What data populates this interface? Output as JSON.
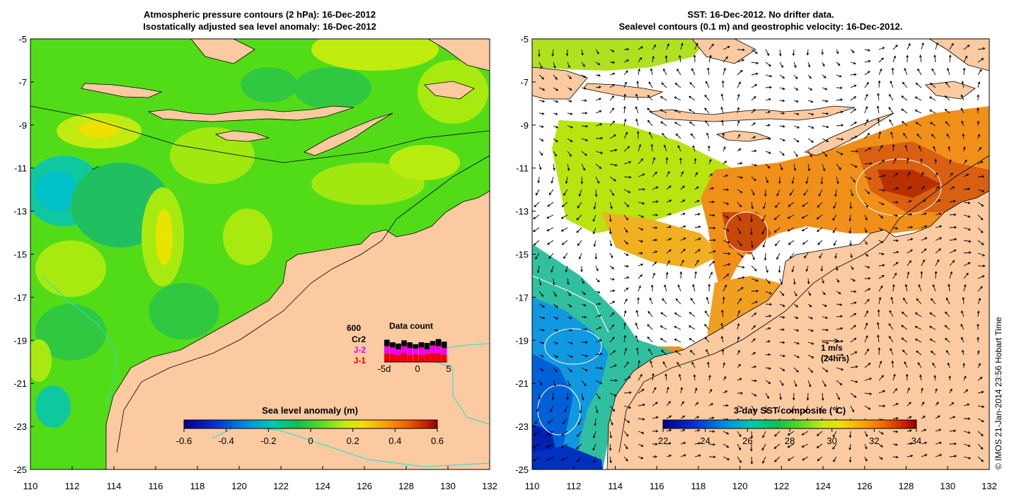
{
  "left_panel": {
    "title_line1": "Atmospheric pressure contours (2 hPa): 16-Dec-2012",
    "title_line2": "Isostatically adjusted sea level anomaly: 16-Dec-2012",
    "colorbar_title": "Sea level anomaly (m)",
    "colorbar_ticks": [
      "-0.6",
      "-0.4",
      "-0.2",
      "0",
      "0.2",
      "0.4",
      "0.6"
    ],
    "colors": {
      "ocean": "#52dc18",
      "land": "#fbcaa0",
      "coast_contour": "#1ce0e0"
    },
    "data_count": {
      "title": "Data count",
      "max_label": "600",
      "legend": [
        {
          "label": "Cr2",
          "color": "#000000"
        },
        {
          "label": "J-2",
          "color": "#f000f0"
        },
        {
          "label": "J-1",
          "color": "#f00000"
        }
      ],
      "x_ticks": [
        "-5d",
        "0",
        "5"
      ],
      "bars_total": [
        0.7,
        0.62,
        0.58,
        0.68,
        0.62,
        0.56,
        0.62,
        0.6,
        0.66,
        0.72,
        0.64
      ],
      "bars_j2": [
        0.5,
        0.46,
        0.4,
        0.5,
        0.44,
        0.42,
        0.46,
        0.4,
        0.52,
        0.5,
        0.44
      ],
      "bars_j1": [
        0.26,
        0.24,
        0.22,
        0.28,
        0.22,
        0.24,
        0.22,
        0.24,
        0.28,
        0.26,
        0.22
      ]
    }
  },
  "right_panel": {
    "title_line1": "SST: 16-Dec-2012. No drifter data.",
    "title_line2": "Sealevel contours (0.1 m) and geostrophic velocity: 16-Dec-2012.",
    "colorbar_title": "3-day SST composite (°C)",
    "colorbar_ticks": [
      "22",
      "24",
      "26",
      "28",
      "30",
      "32",
      "34"
    ],
    "scale_label": "1 m/s",
    "scale_sub": "(24hrs)",
    "colors": {
      "land": "#fbcaa0",
      "cloud": "#ffffff"
    }
  },
  "axes": {
    "lon_ticks": [
      "110",
      "112",
      "114",
      "116",
      "118",
      "120",
      "122",
      "124",
      "126",
      "128",
      "130",
      "132"
    ],
    "lat_ticks": [
      "-5",
      "-7",
      "-9",
      "-11",
      "-13",
      "-15",
      "-17",
      "-19",
      "-21",
      "-23",
      "-25"
    ]
  },
  "credit": "© IMOS 21-Jan-2014 23:56 Hobart Time",
  "colormaps": {
    "jet": [
      "#00008c",
      "#0030d0",
      "#0090e0",
      "#00c8b0",
      "#10c050",
      "#60dc20",
      "#c0ec10",
      "#f0e000",
      "#f8a000",
      "#f06000",
      "#d02000",
      "#900000"
    ]
  }
}
